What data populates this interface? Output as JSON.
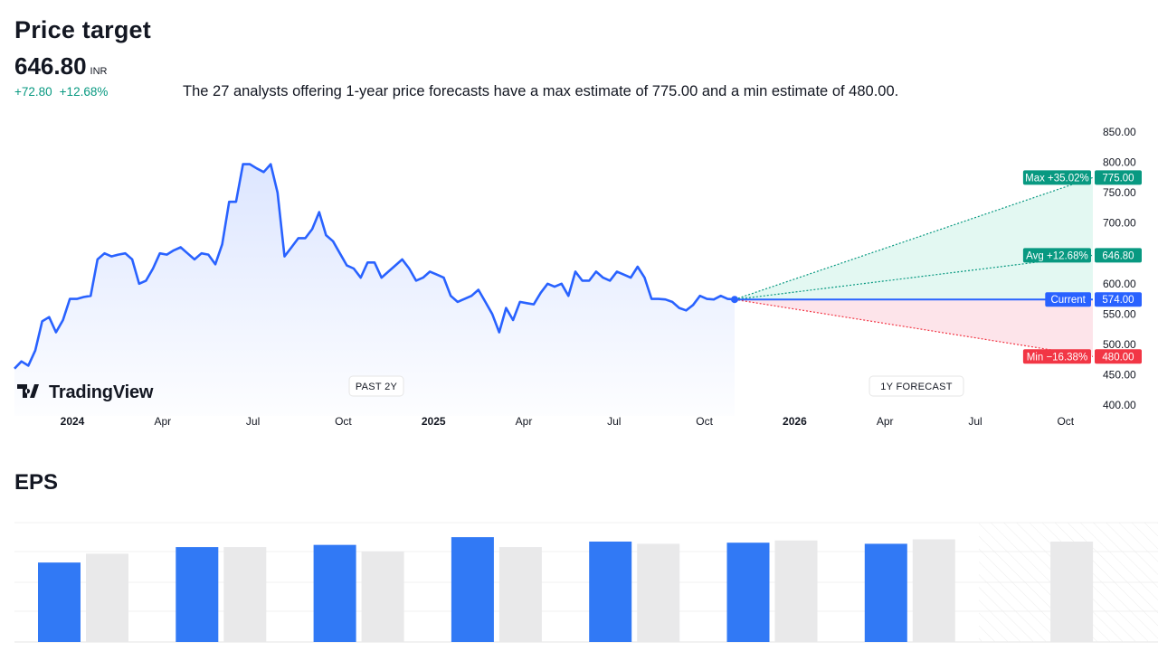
{
  "header": {
    "title": "Price target",
    "value": "646.80",
    "currency": "INR",
    "change_abs": "+72.80",
    "change_pct": "+12.68%",
    "summary": "The 27 analysts offering 1-year price forecasts have a max estimate of 775.00 and a min estimate of 480.00."
  },
  "brand": {
    "name": "TradingView"
  },
  "colors": {
    "line": "#2962ff",
    "bull": "#089981",
    "bear": "#f23645",
    "eps_actual": "#3179f5",
    "eps_estimate": "#e9e9ea"
  },
  "chart_data": [
    {
      "type": "line",
      "xlabel": "",
      "ylabel": "",
      "ylim": [
        400,
        850
      ],
      "y_ticks": [
        "850.00",
        "800.00",
        "750.00",
        "700.00",
        "650.00",
        "600.00",
        "550.00",
        "500.00",
        "450.00",
        "400.00"
      ],
      "x_ticks": [
        "2024",
        "Apr",
        "Jul",
        "Oct",
        "2025",
        "Apr",
        "Jul",
        "Oct",
        "2026",
        "Apr",
        "Jul",
        "Oct"
      ],
      "periods": [
        "PAST 2Y",
        "1Y FORECAST"
      ],
      "series": [
        {
          "values": [
            460,
            472,
            465,
            490,
            538,
            545,
            520,
            540,
            575,
            575,
            578,
            580,
            640,
            650,
            645,
            648,
            650,
            640,
            600,
            605,
            625,
            650,
            648,
            655,
            660,
            650,
            640,
            650,
            648,
            632,
            665,
            735,
            735,
            797,
            797,
            790,
            784,
            797,
            750,
            645,
            660,
            675,
            675,
            690,
            718,
            680,
            670,
            650,
            630,
            625,
            610,
            635,
            635,
            610,
            620,
            630,
            640,
            625,
            605,
            610,
            620,
            615,
            610,
            580,
            570,
            575,
            580,
            590,
            570,
            550,
            520,
            560,
            540,
            570,
            568,
            566,
            585,
            600,
            595,
            600,
            580,
            620,
            605,
            605,
            620,
            610,
            605,
            620,
            615,
            610,
            628,
            610,
            575,
            575,
            574,
            570,
            560,
            556,
            565,
            580,
            575,
            574,
            580,
            575,
            574
          ]
        }
      ],
      "forecast": {
        "current": {
          "label": "Current",
          "value": "574.00",
          "y": 574
        },
        "max": {
          "label": "Max +35.02%",
          "value": "775.00",
          "y": 775
        },
        "avg": {
          "label": "Avg +12.68%",
          "value": "646.80",
          "y": 646.8
        },
        "min": {
          "label": "Min −16.38%",
          "value": "480.00",
          "y": 480
        }
      }
    },
    {
      "type": "bar",
      "title": "EPS",
      "series": [
        {
          "values": [
            0.72,
            0.86,
            0.88,
            0.95,
            0.91,
            0.9,
            0.89,
            null
          ]
        },
        {
          "values": [
            0.8,
            0.86,
            0.82,
            0.86,
            0.89,
            0.92,
            0.93,
            0.91
          ]
        }
      ]
    }
  ]
}
